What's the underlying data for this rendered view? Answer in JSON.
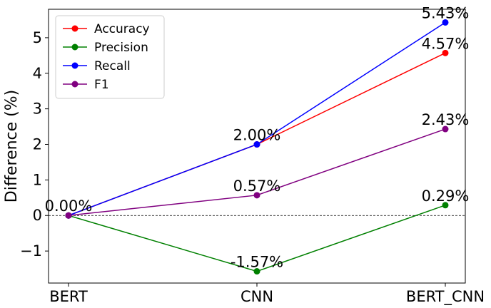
{
  "chart_data": {
    "type": "line",
    "x": [
      "BERT",
      "CNN",
      "BERT_CNN"
    ],
    "ylabel": "Difference (%)",
    "xlabel": "",
    "ylim": [
      -1.9,
      5.8
    ],
    "yticks": [
      -1,
      0,
      1,
      2,
      3,
      4,
      5
    ],
    "ytick_labels": [
      "−1",
      "0",
      "1",
      "2",
      "3",
      "4",
      "5"
    ],
    "grid": false,
    "reference_line": 0,
    "legend": "top-left",
    "series": [
      {
        "name": "Accuracy",
        "color": "#ff0000",
        "values": [
          0.0,
          2.0,
          4.57
        ]
      },
      {
        "name": "Precision",
        "color": "#008000",
        "values": [
          0.0,
          -1.57,
          0.29
        ]
      },
      {
        "name": "Recall",
        "color": "#0000ff",
        "values": [
          0.0,
          2.0,
          5.43
        ]
      },
      {
        "name": "F1",
        "color": "#800080",
        "values": [
          0.0,
          0.57,
          2.43
        ]
      }
    ],
    "annotations": [
      {
        "text": "0.00%",
        "x": "BERT",
        "y": 0.0
      },
      {
        "text": "2.00%",
        "x": "CNN",
        "y": 2.0
      },
      {
        "text": "0.57%",
        "x": "CNN",
        "y": 0.57
      },
      {
        "text": "-1.57%",
        "x": "CNN",
        "y": -1.57
      },
      {
        "text": "5.43%",
        "x": "BERT_CNN",
        "y": 5.43
      },
      {
        "text": "4.57%",
        "x": "BERT_CNN",
        "y": 4.57
      },
      {
        "text": "2.43%",
        "x": "BERT_CNN",
        "y": 2.43
      },
      {
        "text": "0.29%",
        "x": "BERT_CNN",
        "y": 0.29
      }
    ]
  }
}
